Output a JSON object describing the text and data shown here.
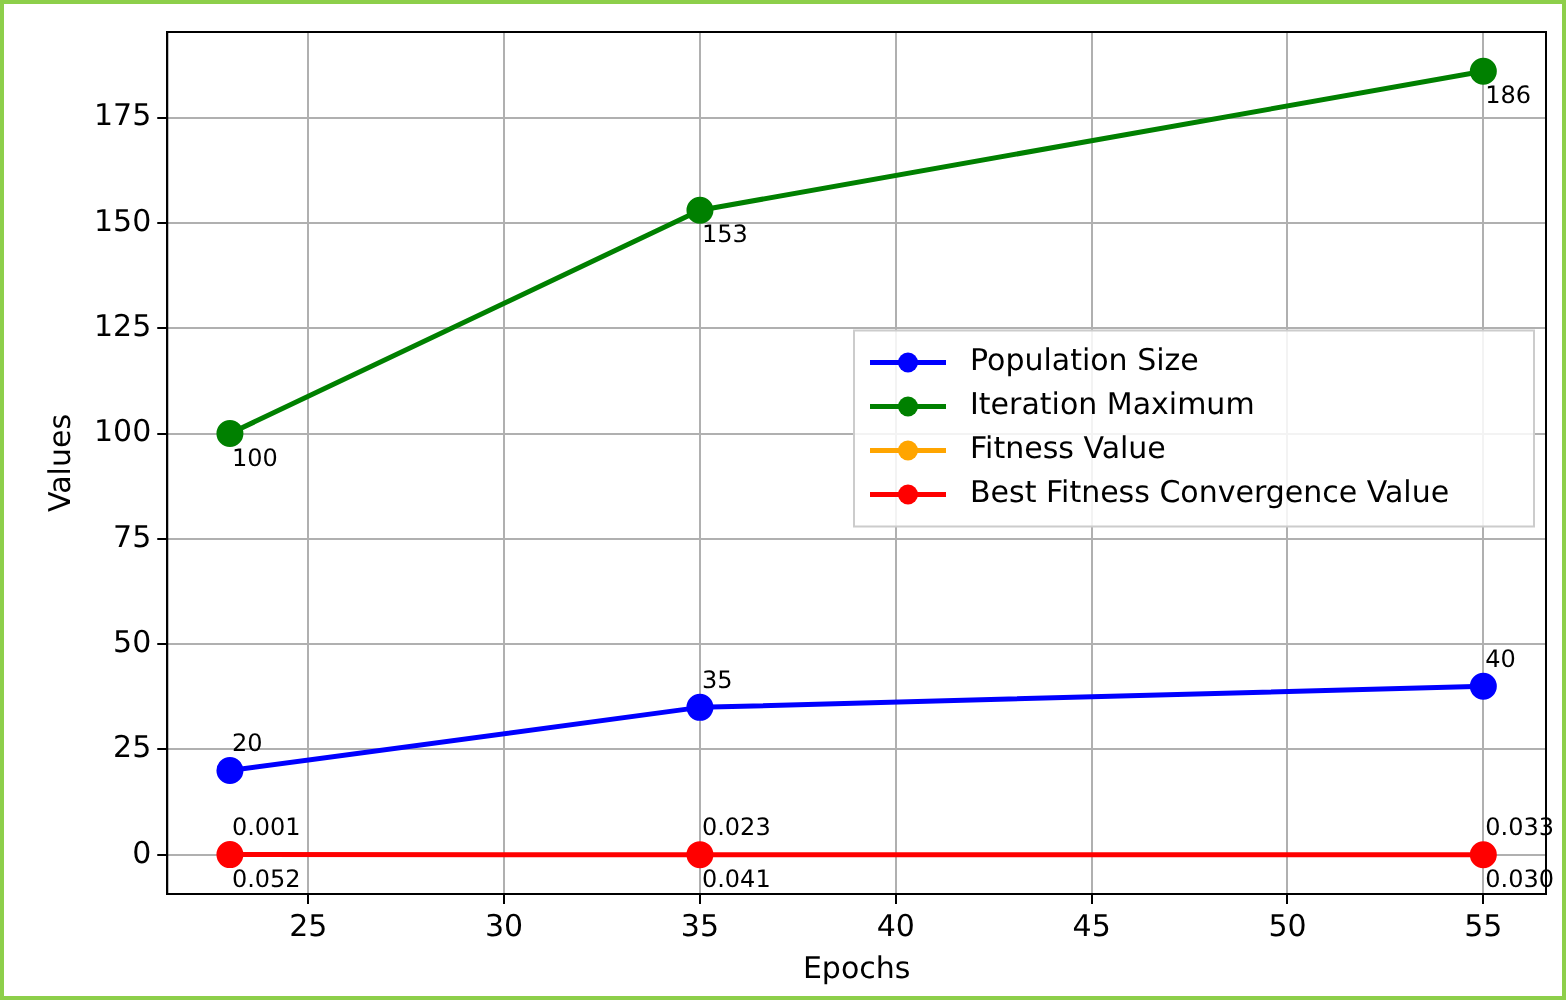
{
  "chart_data": {
    "type": "line",
    "xlabel": "Epochs",
    "ylabel": "Values",
    "x": [
      23,
      35,
      55
    ],
    "series": [
      {
        "name": "Population Size",
        "color": "#0000ff",
        "values": [
          20,
          35,
          40
        ],
        "value_labels": [
          "20",
          "35",
          "40"
        ]
      },
      {
        "name": "Iteration Maximum",
        "color": "#008000",
        "values": [
          100,
          153,
          186
        ],
        "value_labels": [
          "100",
          "153",
          "186"
        ]
      },
      {
        "name": "Fitness Value",
        "color": "#ffa500",
        "values": [
          null,
          null,
          null
        ],
        "value_labels": [
          "0.001",
          "0.023",
          "0.033"
        ]
      },
      {
        "name": "Best Fitness Convergence Value",
        "color": "#ff0000",
        "values": [
          0.052,
          0.041,
          0.03
        ],
        "value_labels": [
          "0.052",
          "0.041",
          "0.030"
        ]
      }
    ],
    "xlim": [
      21.4,
      56.6
    ],
    "xticks": [
      25,
      30,
      35,
      40,
      45,
      50,
      55
    ],
    "ylim": [
      -9.3,
      195.3
    ],
    "yticks": [
      0,
      25,
      50,
      75,
      100,
      125,
      150,
      175
    ],
    "grid": true,
    "legend": "right",
    "marker": "circle",
    "line_style": "solid"
  }
}
